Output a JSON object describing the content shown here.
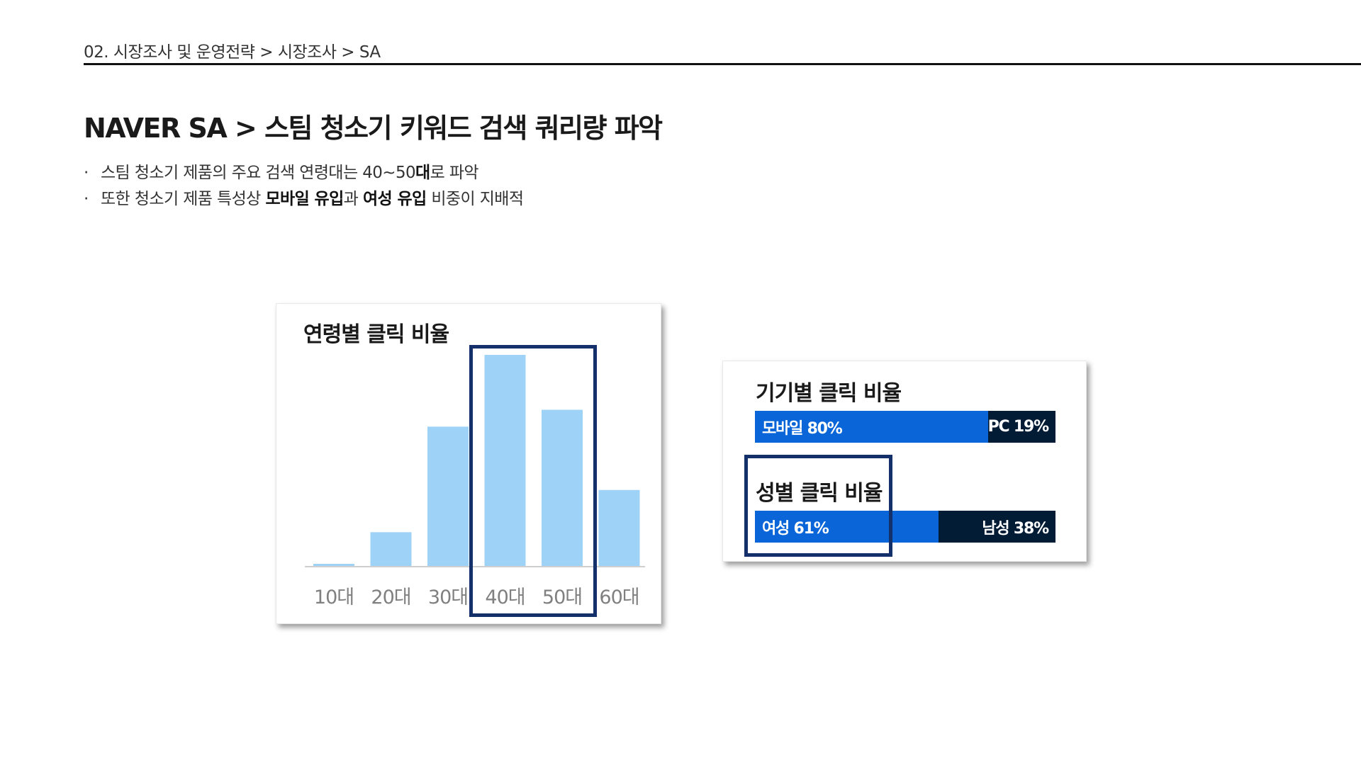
{
  "breadcrumb": "02. 시장조사 및 운영전략  >  시장조사 > SA",
  "title": "NAVER SA >  스팀 청소기 키워드 검색 쿼리량 파악",
  "bullets": [
    {
      "marker": "·",
      "parts": [
        {
          "text": "스팀 청소기 제품의 주요 검색 연령대는 40~50",
          "bold": false
        },
        {
          "text": "대",
          "bold": true
        },
        {
          "text": "로 파악",
          "bold": false
        }
      ]
    },
    {
      "marker": "·",
      "parts": [
        {
          "text": "또한 청소기 제품 특성상 ",
          "bold": false
        },
        {
          "text": "모바일 유입",
          "bold": true
        },
        {
          "text": "과 ",
          "bold": false
        },
        {
          "text": "여성 유입",
          "bold": true
        },
        {
          "text": " 비중이 지배적",
          "bold": false
        }
      ]
    }
  ],
  "colors": {
    "age_bar": "#9fd2f7",
    "axis": "#cfcfcf",
    "highlight": "#13306a",
    "share_primary": "#0a66d8",
    "share_secondary": "#031c36"
  },
  "chart_data": [
    {
      "type": "bar",
      "title": "연령별 클릭 비율",
      "categories": [
        "10대",
        "20대",
        "30대",
        "40대",
        "50대",
        "60대"
      ],
      "values": [
        1,
        16,
        66,
        100,
        74,
        36
      ],
      "ylim": [
        0,
        100
      ],
      "grid": false,
      "highlighted_categories": [
        "40대",
        "50대"
      ]
    },
    {
      "type": "bar",
      "orientation": "horizontal-stacked",
      "title": "기기별 클릭 비율",
      "series": [
        {
          "name": "모바일",
          "label": "모바일 80%",
          "value": 80
        },
        {
          "name": "PC",
          "label": "PC 19%",
          "value": 19
        }
      ]
    },
    {
      "type": "bar",
      "orientation": "horizontal-stacked",
      "title": "성별 클릭 비율",
      "series": [
        {
          "name": "여성",
          "label": "여성 61%",
          "value": 61
        },
        {
          "name": "남성",
          "label": "남성 38%",
          "value": 38
        }
      ],
      "highlighted": true
    }
  ]
}
